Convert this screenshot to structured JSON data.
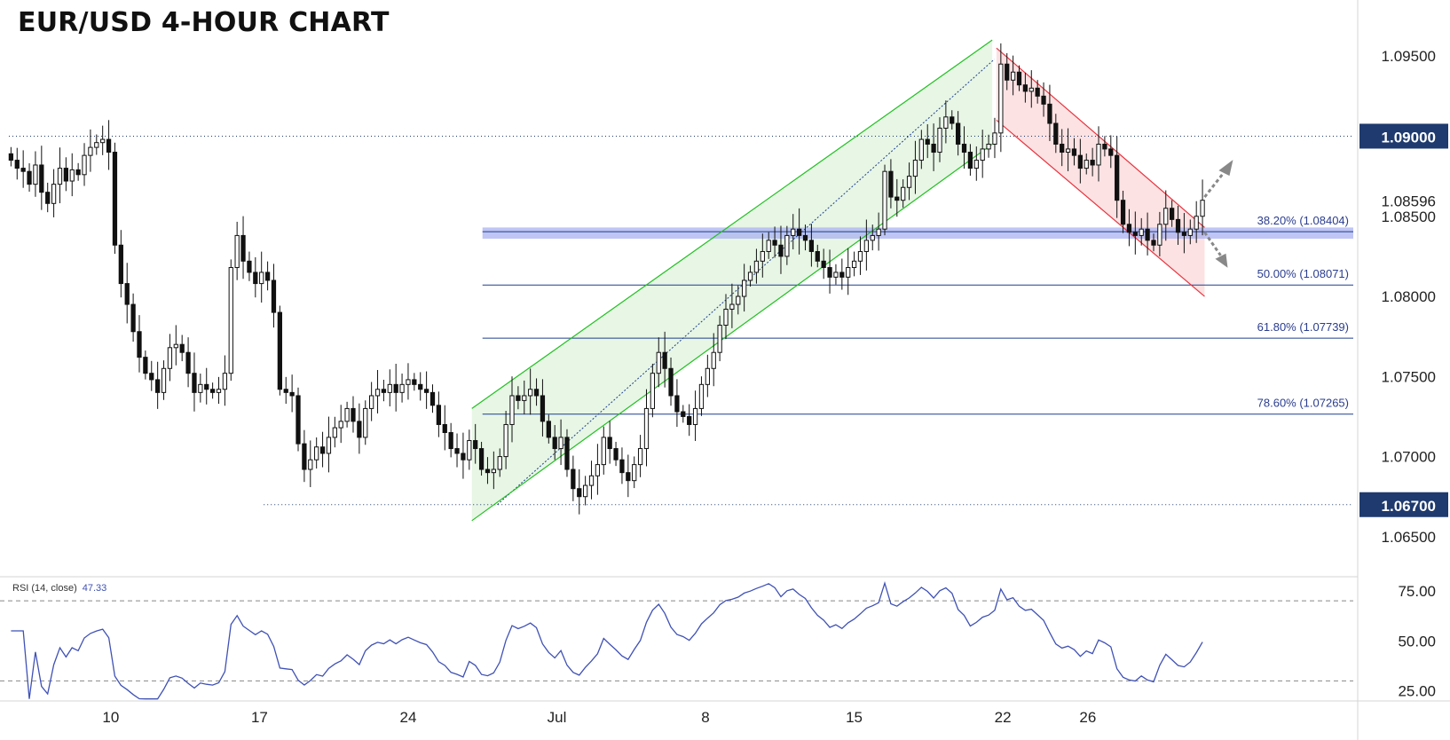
{
  "title": "EUR/USD 4-HOUR CHART",
  "colors": {
    "up_candle": "#ffffff",
    "down_candle": "#111111",
    "channel_up": "#22c022",
    "channel_up_fill": "#e3f4e1",
    "channel_down": "#e8343f",
    "channel_down_fill": "#fbd8da",
    "fib_line": "#1f3f8f",
    "support_band": "#aab2f0",
    "rsi_line": "#3f51b5",
    "price_badge": "#1e3a6e"
  },
  "chart_data": {
    "type": "candlestick",
    "title": "EUR/USD 4-HOUR CHART",
    "y_range": [
      1.0625,
      1.0985
    ],
    "y_ticks": [
      "1.09500",
      "1.08500",
      "1.08000",
      "1.07500",
      "1.07000",
      "1.06500"
    ],
    "x_ticks": [
      "10",
      "17",
      "24",
      "Jul",
      "8",
      "15",
      "22",
      "26"
    ],
    "current_price": "1.08596",
    "levels": [
      {
        "label": "1.09000",
        "value": 1.09,
        "style": "dotted"
      },
      {
        "label": "1.06700",
        "value": 1.067,
        "style": "dotted"
      }
    ],
    "fib_levels": [
      {
        "label": "38.20% (1.08404)",
        "value": 1.08404
      },
      {
        "label": "50.00% (1.08071)",
        "value": 1.08071
      },
      {
        "label": "61.80% (1.07739)",
        "value": 1.07739
      },
      {
        "label": "78.60% (1.07265)",
        "value": 1.07265
      }
    ],
    "support_band": [
      1.0836,
      1.0843
    ],
    "ascending_channel": {
      "lower_from": [
        27.0,
        1.066
      ],
      "lower_to": [
        51.5,
        1.0895
      ],
      "upper_from": [
        27.0,
        1.073
      ],
      "upper_to": [
        51.5,
        1.096
      ]
    },
    "descending_channel": {
      "upper_from": [
        51.7,
        1.0955
      ],
      "upper_to": [
        61.5,
        1.0843
      ],
      "lower_from": [
        51.7,
        1.091
      ],
      "lower_to": [
        61.5,
        1.08
      ]
    },
    "closes": [
      1.0885,
      1.088,
      1.0878,
      1.087,
      1.0882,
      1.0865,
      1.0858,
      1.087,
      1.088,
      1.0872,
      1.0879,
      1.0876,
      1.0888,
      1.0893,
      1.0896,
      1.0898,
      1.089,
      1.0832,
      1.0808,
      1.0795,
      1.0778,
      1.0762,
      1.0752,
      1.0748,
      1.074,
      1.0755,
      1.0768,
      1.077,
      1.0765,
      1.0752,
      1.074,
      1.0745,
      1.0742,
      1.074,
      1.0742,
      1.0752,
      1.0818,
      1.0838,
      1.0822,
      1.0815,
      1.0808,
      1.0815,
      1.081,
      1.079,
      1.0742,
      1.074,
      1.0738,
      1.0708,
      1.0692,
      1.0698,
      1.0706,
      1.0702,
      1.0712,
      1.0718,
      1.0722,
      1.073,
      1.0722,
      1.0712,
      1.073,
      1.0738,
      1.0742,
      1.074,
      1.0745,
      1.074,
      1.0745,
      1.0748,
      1.0745,
      1.0742,
      1.074,
      1.0732,
      1.072,
      1.0715,
      1.0705,
      1.0702,
      1.0698,
      1.071,
      1.0705,
      1.0692,
      1.069,
      1.0692,
      1.07,
      1.072,
      1.0738,
      1.0735,
      1.0738,
      1.0742,
      1.0738,
      1.0722,
      1.0712,
      1.0705,
      1.0712,
      1.0692,
      1.068,
      1.0675,
      1.0682,
      1.0688,
      1.0695,
      1.0712,
      1.0705,
      1.0698,
      1.069,
      1.0685,
      1.0695,
      1.0705,
      1.073,
      1.0752,
      1.0765,
      1.0755,
      1.0738,
      1.0728,
      1.0725,
      1.072,
      1.073,
      1.0745,
      1.0755,
      1.0765,
      1.0782,
      1.0792,
      1.0795,
      1.08,
      1.081,
      1.0815,
      1.0822,
      1.0828,
      1.0835,
      1.0832,
      1.0825,
      1.0838,
      1.0842,
      1.0838,
      1.0835,
      1.0828,
      1.0822,
      1.0818,
      1.0812,
      1.0815,
      1.0812,
      1.0818,
      1.0822,
      1.0828,
      1.0835,
      1.0838,
      1.0842,
      1.0878,
      1.0862,
      1.086,
      1.0868,
      1.0875,
      1.0885,
      1.0898,
      1.0895,
      1.089,
      1.0905,
      1.0912,
      1.0908,
      1.0895,
      1.089,
      1.088,
      1.0885,
      1.0892,
      1.0895,
      1.0902,
      1.0945,
      1.0935,
      1.094,
      1.0932,
      1.0928,
      1.093,
      1.0925,
      1.092,
      1.0908,
      1.0895,
      1.089,
      1.0892,
      1.0888,
      1.088,
      1.0885,
      1.0882,
      1.0895,
      1.0892,
      1.0888,
      1.086,
      1.0845,
      1.084,
      1.0838,
      1.0842,
      1.0835,
      1.0832,
      1.0845,
      1.0855,
      1.0848,
      1.084,
      1.0838,
      1.0842,
      1.085,
      1.086
    ],
    "rsi": {
      "label": "RSI (14, close)",
      "value": "47.33",
      "y_range": [
        20,
        82
      ],
      "y_ticks": [
        "75.00",
        "50.00",
        "25.00"
      ],
      "bands": [
        70,
        30
      ]
    }
  }
}
